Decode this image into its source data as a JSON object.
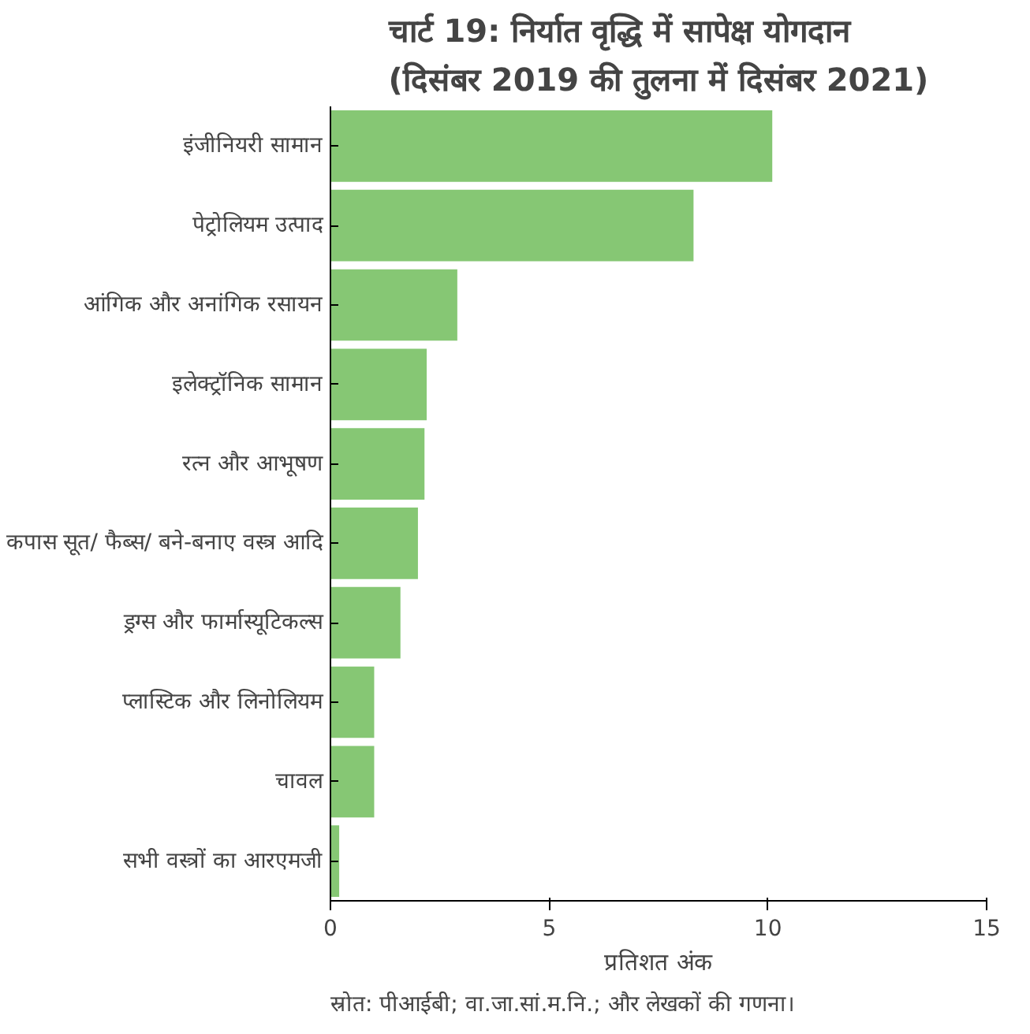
{
  "chart_data": {
    "type": "bar",
    "orientation": "horizontal",
    "title": "चार्ट 19: निर्यात वृद्धि में सापेक्ष योगदान (दिसंबर 2019 की तुलना में दिसंबर 2021)",
    "categories": [
      "इंजीनियरी सामान",
      "पेट्रोलियम उत्पाद",
      "आंगिक और अनांगिक रसायन",
      "इलेक्ट्रॉनिक सामान",
      "रत्न और आभूषण",
      "कपास सूत/ फैब्स/ बने-बनाए वस्त्र आदि",
      "ड्रग्स और फार्मास्यूटिकल्स",
      "प्लास्टिक और लिनोलियम",
      "चावल",
      "सभी वस्त्रों का आरएमजी"
    ],
    "values": [
      10.1,
      8.3,
      2.9,
      2.2,
      2.15,
      2.0,
      1.6,
      1.0,
      1.0,
      0.2
    ],
    "color": "#86c774",
    "xlim": [
      0,
      15
    ],
    "xticks": [
      0,
      5,
      10,
      15
    ],
    "xlabel": "प्रतिशत अंक",
    "grid": false,
    "annotations": [
      "स्रोत: पीआईबी; वा.जा.सां.म.नि.; और लेखकों की गणना।"
    ]
  }
}
